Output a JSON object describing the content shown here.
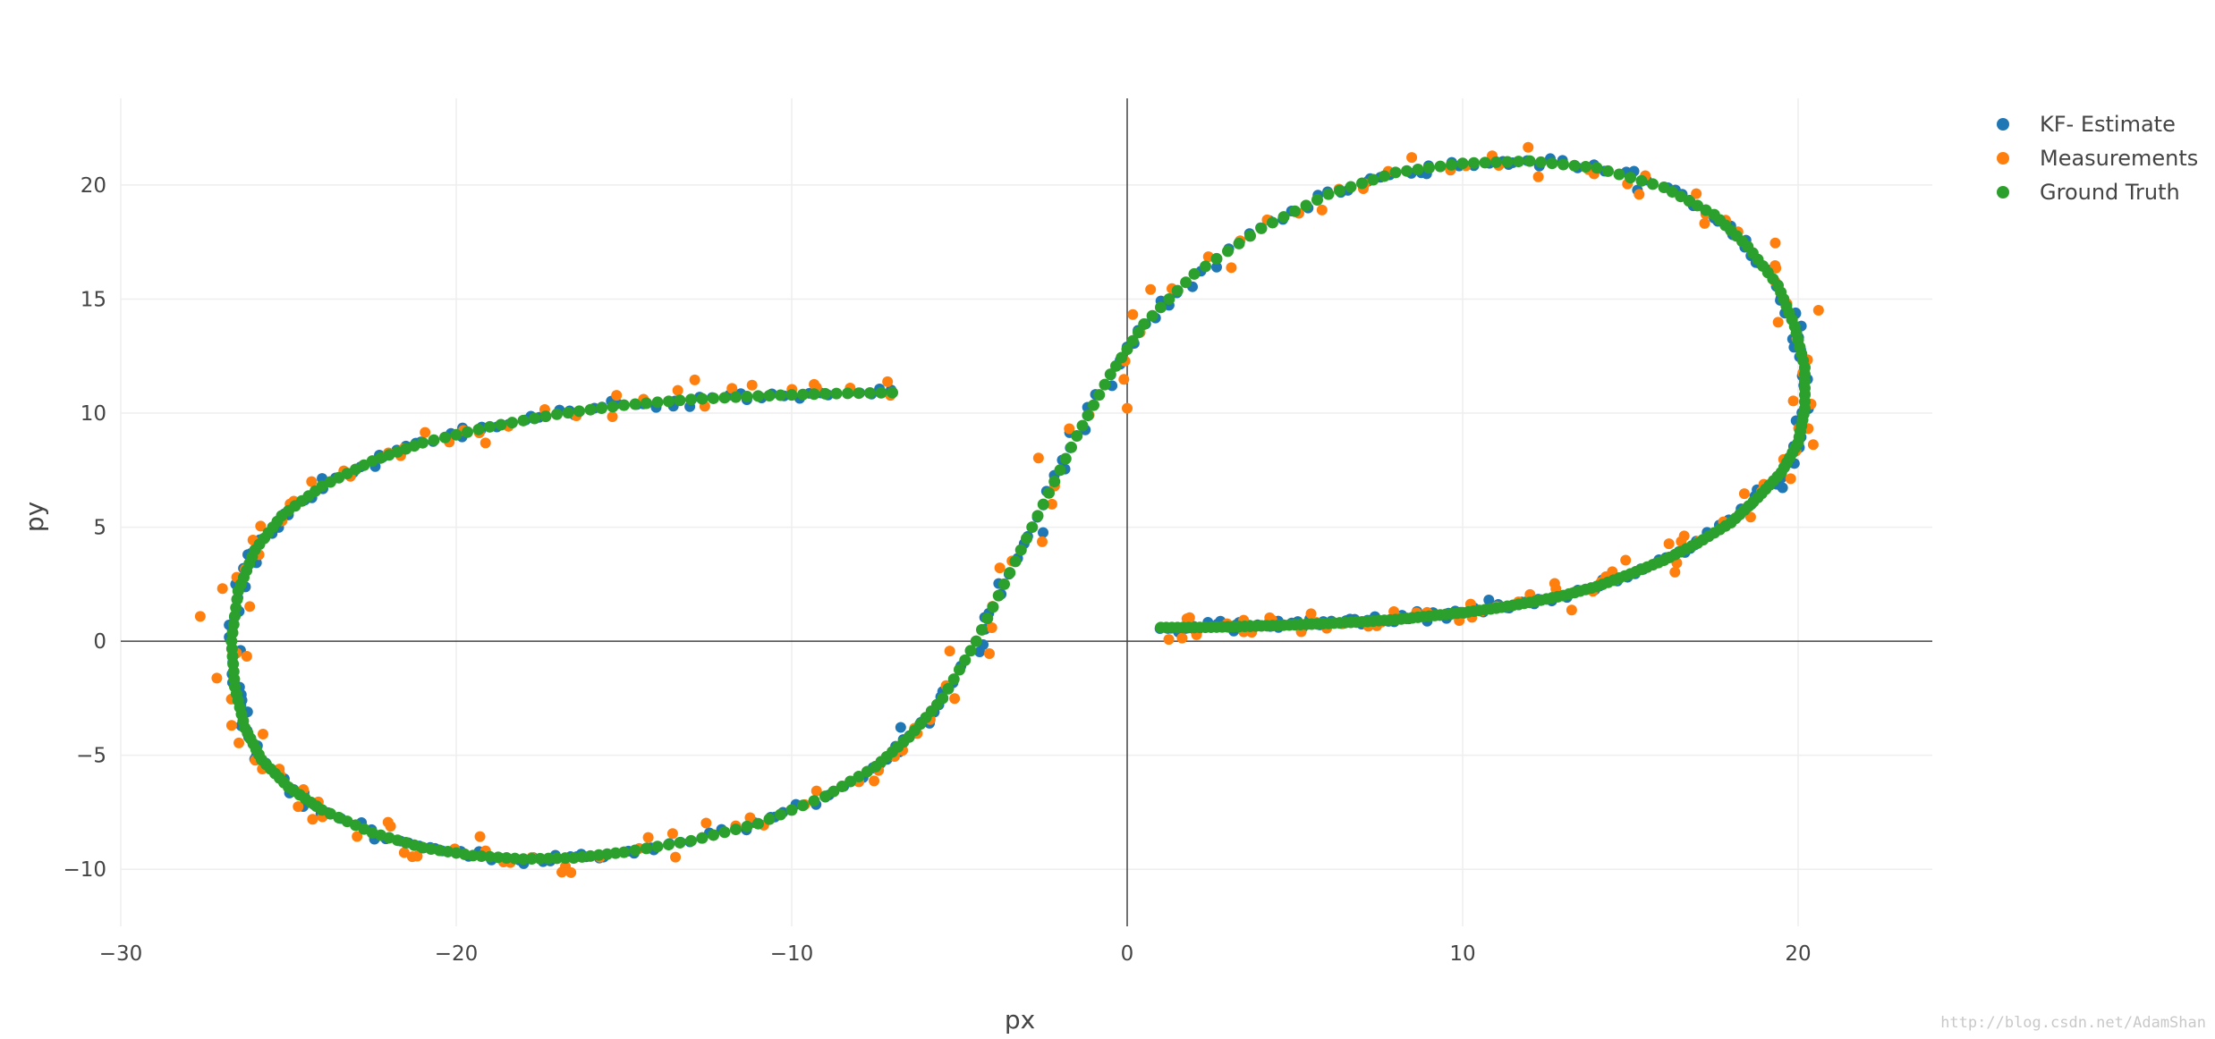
{
  "chart_data": {
    "type": "scatter",
    "title": "",
    "xlabel": "px",
    "ylabel": "py",
    "xlim": [
      -30,
      24
    ],
    "ylim": [
      -12.5,
      23.8
    ],
    "x_ticks": [
      -30,
      -20,
      -10,
      0,
      10,
      20
    ],
    "y_ticks": [
      -10,
      -5,
      0,
      5,
      10,
      15,
      20
    ],
    "x_tick_labels": [
      "−30",
      "−20",
      "−10",
      "0",
      "10",
      "20"
    ],
    "y_tick_labels": [
      "−10",
      "−5",
      "0",
      "5",
      "10",
      "15",
      "20"
    ],
    "grid": true,
    "zero_lines": true,
    "legend_position": "top-right",
    "trajectory_x": [
      -7,
      -9,
      -11,
      -13,
      -15,
      -17,
      -19,
      -21,
      -22.5,
      -24,
      -25.2,
      -26,
      -26.5,
      -26.7,
      -26.6,
      -26.3,
      -25.8,
      -25,
      -24,
      -22.5,
      -21,
      -19.5,
      -18,
      -16.5,
      -15,
      -13,
      -11,
      -9,
      -7.5,
      -6.5,
      -5.5,
      -4.5,
      -3.5,
      -2.5,
      -1.5,
      -0.5,
      0.5,
      2,
      4,
      6,
      8,
      10,
      12,
      14,
      16,
      17.5,
      18.5,
      19.4,
      19.9,
      20.2,
      20.2,
      20,
      19.5,
      18.8,
      18,
      17,
      16,
      15,
      14,
      13,
      12,
      11,
      10,
      9,
      8,
      7,
      6,
      5,
      4,
      3,
      2,
      1
    ],
    "trajectory_y": [
      10.9,
      10.85,
      10.75,
      10.6,
      10.35,
      9.95,
      9.4,
      8.7,
      7.9,
      6.8,
      5.5,
      4,
      2.2,
      0,
      -2,
      -3.8,
      -5.2,
      -6.4,
      -7.4,
      -8.4,
      -9.05,
      -9.4,
      -9.55,
      -9.5,
      -9.25,
      -8.75,
      -8,
      -6.8,
      -5.5,
      -4.2,
      -2.5,
      0,
      3,
      6,
      9,
      11.7,
      13.9,
      16.1,
      18.1,
      19.6,
      20.55,
      20.95,
      21.05,
      20.75,
      19.9,
      18.7,
      17.3,
      15.6,
      13.8,
      12,
      10.2,
      8.7,
      7.4,
      6.3,
      5.2,
      4.3,
      3.55,
      2.95,
      2.4,
      2,
      1.7,
      1.45,
      1.25,
      1.1,
      0.95,
      0.85,
      0.78,
      0.72,
      0.67,
      0.63,
      0.6,
      0.6
    ],
    "measurement_noise": 0.35,
    "series": [
      {
        "name": "KF- Estimate",
        "color": "#1f77b4"
      },
      {
        "name": "Measurements",
        "color": "#ff7f0e"
      },
      {
        "name": "Ground Truth",
        "color": "#2ca02c"
      }
    ]
  },
  "watermark": "http://blog.csdn.net/AdamShan"
}
